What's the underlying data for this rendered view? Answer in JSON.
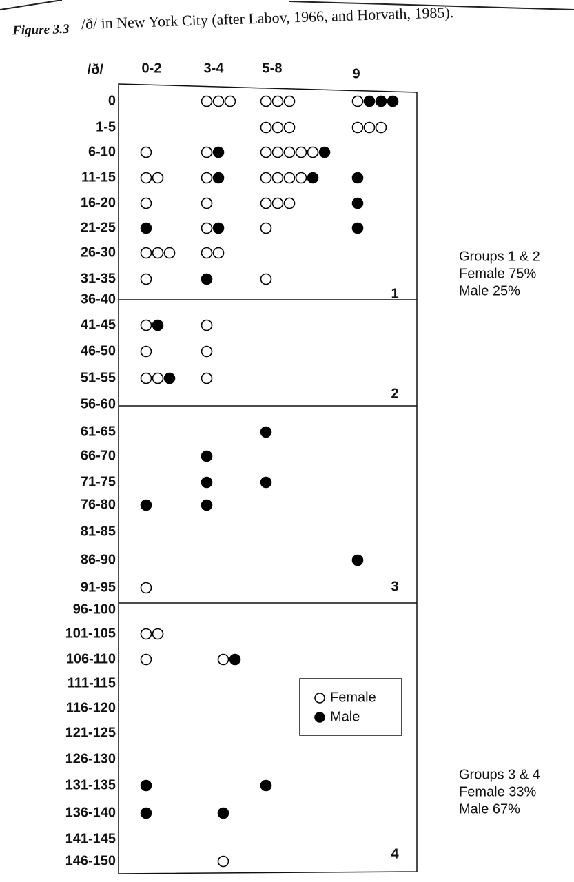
{
  "chart_data": {
    "type": "dot-matrix",
    "figure_label": "Figure 3.3",
    "title": "/ð/ in New York City (after Labov, 1966, and Horvath, 1985).",
    "row_header": "/ð/",
    "columns": [
      "0-2",
      "3-4",
      "5-8",
      "9"
    ],
    "rows": [
      {
        "label": "0",
        "cells": [
          null,
          {
            "female": 3,
            "male": 0
          },
          {
            "female": 3,
            "male": 0
          },
          {
            "female": 1,
            "male": 3
          }
        ]
      },
      {
        "label": "1-5",
        "cells": [
          null,
          null,
          {
            "female": 3,
            "male": 0
          },
          {
            "female": 3,
            "male": 0
          }
        ]
      },
      {
        "label": "6-10",
        "cells": [
          {
            "female": 1,
            "male": 0
          },
          {
            "female": 1,
            "male": 1
          },
          {
            "female": 5,
            "male": 1
          },
          null
        ]
      },
      {
        "label": "11-15",
        "cells": [
          {
            "female": 2,
            "male": 0
          },
          {
            "female": 1,
            "male": 1
          },
          {
            "female": 4,
            "male": 1
          },
          {
            "female": 0,
            "male": 1
          }
        ]
      },
      {
        "label": "16-20",
        "cells": [
          {
            "female": 1,
            "male": 0
          },
          {
            "female": 1,
            "male": 0
          },
          {
            "female": 3,
            "male": 0
          },
          {
            "female": 0,
            "male": 1
          }
        ]
      },
      {
        "label": "21-25",
        "cells": [
          {
            "female": 0,
            "male": 1
          },
          {
            "female": 1,
            "male": 1
          },
          {
            "female": 1,
            "male": 0
          },
          {
            "female": 0,
            "male": 1
          }
        ]
      },
      {
        "label": "26-30",
        "cells": [
          {
            "female": 3,
            "male": 0
          },
          {
            "female": 2,
            "male": 0
          },
          null,
          null
        ]
      },
      {
        "label": "31-35",
        "cells": [
          {
            "female": 1,
            "male": 0
          },
          {
            "female": 0,
            "male": 1
          },
          {
            "female": 1,
            "male": 0
          },
          null
        ]
      },
      {
        "label": "36-40",
        "cells": [
          null,
          null,
          null,
          null
        ]
      },
      {
        "label": "41-45",
        "cells": [
          {
            "female": 1,
            "male": 1
          },
          {
            "female": 1,
            "male": 0
          },
          null,
          null
        ]
      },
      {
        "label": "46-50",
        "cells": [
          {
            "female": 1,
            "male": 0
          },
          {
            "female": 1,
            "male": 0
          },
          null,
          null
        ]
      },
      {
        "label": "51-55",
        "cells": [
          {
            "female": 2,
            "male": 1
          },
          {
            "female": 1,
            "male": 0
          },
          null,
          null
        ]
      },
      {
        "label": "56-60",
        "cells": [
          null,
          null,
          null,
          null
        ]
      },
      {
        "label": "61-65",
        "cells": [
          null,
          null,
          {
            "female": 0,
            "male": 1
          },
          null
        ]
      },
      {
        "label": "66-70",
        "cells": [
          null,
          {
            "female": 0,
            "male": 1
          },
          null,
          null
        ]
      },
      {
        "label": "71-75",
        "cells": [
          null,
          {
            "female": 0,
            "male": 1
          },
          {
            "female": 0,
            "male": 1
          },
          null
        ]
      },
      {
        "label": "76-80",
        "cells": [
          {
            "female": 0,
            "male": 1
          },
          {
            "female": 0,
            "male": 1
          },
          null,
          null
        ]
      },
      {
        "label": "81-85",
        "cells": [
          null,
          null,
          null,
          null
        ]
      },
      {
        "label": "86-90",
        "cells": [
          null,
          null,
          null,
          {
            "female": 0,
            "male": 1
          }
        ]
      },
      {
        "label": "91-95",
        "cells": [
          {
            "female": 1,
            "male": 0
          },
          null,
          null,
          null
        ]
      },
      {
        "label": "96-100",
        "cells": [
          null,
          null,
          null,
          null
        ]
      },
      {
        "label": "101-105",
        "cells": [
          {
            "female": 2,
            "male": 0
          },
          null,
          null,
          null
        ]
      },
      {
        "label": "106-110",
        "cells": [
          {
            "female": 1,
            "male": 0
          },
          {
            "female": 1,
            "male": 1
          },
          null,
          null
        ]
      },
      {
        "label": "111-115",
        "cells": [
          null,
          null,
          null,
          null
        ]
      },
      {
        "label": "116-120",
        "cells": [
          null,
          null,
          null,
          null
        ]
      },
      {
        "label": "121-125",
        "cells": [
          null,
          null,
          null,
          null
        ]
      },
      {
        "label": "126-130",
        "cells": [
          null,
          null,
          null,
          null
        ]
      },
      {
        "label": "131-135",
        "cells": [
          {
            "female": 0,
            "male": 1
          },
          null,
          {
            "female": 0,
            "male": 1
          },
          null
        ]
      },
      {
        "label": "136-140",
        "cells": [
          {
            "female": 0,
            "male": 1
          },
          {
            "female": 0,
            "male": 1
          },
          null,
          null
        ]
      },
      {
        "label": "141-145",
        "cells": [
          null,
          null,
          null,
          null
        ]
      },
      {
        "label": "146-150",
        "cells": [
          null,
          {
            "female": 1,
            "male": 0
          },
          null,
          null
        ]
      }
    ],
    "groups": [
      "1",
      "2",
      "3",
      "4"
    ],
    "legend": [
      "Female",
      "Male"
    ],
    "notes": [
      [
        "Groups 1 & 2",
        "Female 75%",
        "Male 25%"
      ],
      [
        "Groups 3 & 4",
        "Female 33%",
        "Male 67%"
      ]
    ]
  }
}
